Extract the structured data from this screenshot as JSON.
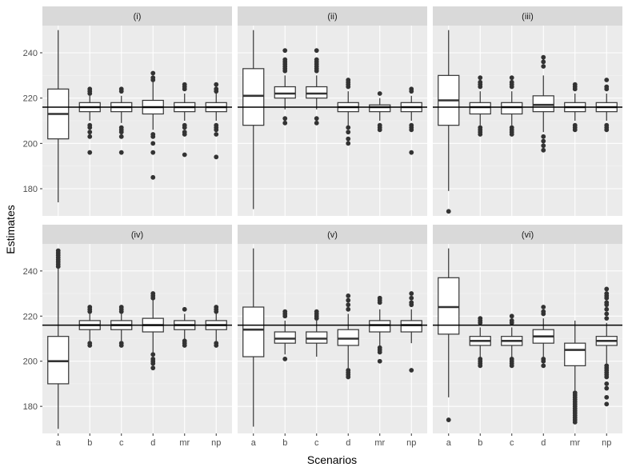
{
  "chart_data": {
    "type": "boxplot",
    "xlabel": "Scenarios",
    "ylabel": "Estimates",
    "categories": [
      "a",
      "b",
      "c",
      "d",
      "mr",
      "np"
    ],
    "ylim": [
      168,
      252
    ],
    "yticks": [
      180,
      200,
      220,
      240
    ],
    "reference_line": 216,
    "panels": [
      {
        "label": "(i)",
        "boxes": [
          {
            "min": 174,
            "q1": 202,
            "median": 213,
            "q3": 224,
            "max": 250,
            "outliers": []
          },
          {
            "min": 210,
            "q1": 214,
            "median": 216,
            "q3": 218,
            "max": 221,
            "outliers": [
              224,
              223,
              222,
              208,
              207,
              205,
              203,
              196
            ]
          },
          {
            "min": 209,
            "q1": 214,
            "median": 216,
            "q3": 218,
            "max": 221,
            "outliers": [
              224,
              223,
              207,
              206,
              205,
              203,
              196
            ]
          },
          {
            "min": 206,
            "q1": 213,
            "median": 216,
            "q3": 219,
            "max": 227,
            "outliers": [
              231,
              229,
              228,
              204,
              203,
              200,
              196,
              185
            ]
          },
          {
            "min": 210,
            "q1": 214,
            "median": 216,
            "q3": 218,
            "max": 222,
            "outliers": [
              226,
              225,
              224,
              208,
              207,
              205,
              204,
              195
            ]
          },
          {
            "min": 210,
            "q1": 214,
            "median": 216,
            "q3": 218,
            "max": 222,
            "outliers": [
              226,
              224,
              223,
              208,
              207,
              206,
              204,
              194
            ]
          }
        ]
      },
      {
        "label": "(ii)",
        "boxes": [
          {
            "min": 171,
            "q1": 208,
            "median": 221,
            "q3": 233,
            "max": 250,
            "outliers": []
          },
          {
            "min": 215,
            "q1": 220,
            "median": 222,
            "q3": 225,
            "max": 230,
            "outliers": [
              241,
              237,
              236,
              235,
              234,
              233,
              232,
              211,
              209
            ]
          },
          {
            "min": 215,
            "q1": 220,
            "median": 222,
            "q3": 225,
            "max": 230,
            "outliers": [
              241,
              237,
              236,
              235,
              234,
              233,
              232,
              211,
              209
            ]
          },
          {
            "min": 207,
            "q1": 214,
            "median": 216,
            "q3": 218,
            "max": 223,
            "outliers": [
              228,
              227,
              226,
              225,
              207,
              205,
              202,
              200
            ]
          },
          {
            "min": 210,
            "q1": 214,
            "median": 216,
            "q3": 217,
            "max": 220,
            "outliers": [
              222,
              208,
              207,
              206
            ]
          },
          {
            "min": 210,
            "q1": 214,
            "median": 216,
            "q3": 218,
            "max": 221,
            "outliers": [
              224,
              223,
              208,
              207,
              206,
              196
            ]
          }
        ]
      },
      {
        "label": "(iii)",
        "boxes": [
          {
            "min": 179,
            "q1": 208,
            "median": 219,
            "q3": 230,
            "max": 250,
            "outliers": [
              170
            ]
          },
          {
            "min": 208,
            "q1": 213,
            "median": 216,
            "q3": 218,
            "max": 223,
            "outliers": [
              229,
              227,
              226,
              225,
              207,
              206,
              205,
              204
            ]
          },
          {
            "min": 208,
            "q1": 213,
            "median": 216,
            "q3": 218,
            "max": 223,
            "outliers": [
              229,
              227,
              226,
              225,
              207,
              206,
              205,
              204
            ]
          },
          {
            "min": 205,
            "q1": 214,
            "median": 217,
            "q3": 221,
            "max": 230,
            "outliers": [
              238,
              236,
              234,
              203,
              201,
              199,
              197
            ]
          },
          {
            "min": 210,
            "q1": 214,
            "median": 216,
            "q3": 218,
            "max": 222,
            "outliers": [
              226,
              225,
              224,
              208,
              207,
              206
            ]
          },
          {
            "min": 210,
            "q1": 214,
            "median": 216,
            "q3": 218,
            "max": 222,
            "outliers": [
              228,
              225,
              224,
              208,
              207,
              206
            ]
          }
        ]
      },
      {
        "label": "(iv)",
        "boxes": [
          {
            "min": 170,
            "q1": 190,
            "median": 200,
            "q3": 211,
            "max": 241,
            "outliers": [
              249,
              248,
              247,
              246,
              245,
              244,
              243,
              242
            ]
          },
          {
            "min": 209,
            "q1": 214,
            "median": 216,
            "q3": 218,
            "max": 221,
            "outliers": [
              224,
              223,
              222,
              208,
              207
            ]
          },
          {
            "min": 209,
            "q1": 214,
            "median": 216,
            "q3": 218,
            "max": 221,
            "outliers": [
              224,
              223,
              222,
              208,
              207
            ]
          },
          {
            "min": 204,
            "q1": 213,
            "median": 216,
            "q3": 219,
            "max": 228,
            "outliers": [
              230,
              229,
              228,
              203,
              201,
              200,
              199,
              197
            ]
          },
          {
            "min": 210,
            "q1": 214,
            "median": 216,
            "q3": 218,
            "max": 221,
            "outliers": [
              223,
              209,
              208,
              207
            ]
          },
          {
            "min": 209,
            "q1": 214,
            "median": 216,
            "q3": 218,
            "max": 221,
            "outliers": [
              224,
              223,
              222,
              208,
              207
            ]
          }
        ]
      },
      {
        "label": "(v)",
        "boxes": [
          {
            "min": 171,
            "q1": 202,
            "median": 214,
            "q3": 224,
            "max": 250,
            "outliers": []
          },
          {
            "min": 203,
            "q1": 208,
            "median": 210,
            "q3": 213,
            "max": 218,
            "outliers": [
              222,
              221,
              220,
              201
            ]
          },
          {
            "min": 202,
            "q1": 208,
            "median": 210,
            "q3": 213,
            "max": 218,
            "outliers": [
              222,
              221,
              220,
              219
            ]
          },
          {
            "min": 197,
            "q1": 207,
            "median": 210,
            "q3": 214,
            "max": 221,
            "outliers": [
              229,
              227,
              225,
              223,
              196,
              195,
              194,
              193
            ]
          },
          {
            "min": 207,
            "q1": 213,
            "median": 216,
            "q3": 218,
            "max": 223,
            "outliers": [
              228,
              227,
              226,
              206,
              205,
              204,
              200
            ]
          },
          {
            "min": 208,
            "q1": 213,
            "median": 216,
            "q3": 218,
            "max": 223,
            "outliers": [
              230,
              228,
              226,
              225,
              196
            ]
          }
        ]
      },
      {
        "label": "(vi)",
        "boxes": [
          {
            "min": 184,
            "q1": 212,
            "median": 224,
            "q3": 237,
            "max": 250,
            "outliers": [
              174
            ]
          },
          {
            "min": 202,
            "q1": 207,
            "median": 209,
            "q3": 211,
            "max": 215,
            "outliers": [
              219,
              218,
              217,
              201,
              200,
              199,
              198
            ]
          },
          {
            "min": 202,
            "q1": 207,
            "median": 209,
            "q3": 211,
            "max": 215,
            "outliers": [
              220,
              218,
              217,
              201,
              200,
              199,
              198
            ]
          },
          {
            "min": 202,
            "q1": 208,
            "median": 211,
            "q3": 214,
            "max": 219,
            "outliers": [
              224,
              222,
              221,
              201,
              200,
              198
            ]
          },
          {
            "min": 187,
            "q1": 198,
            "median": 205,
            "q3": 208,
            "max": 218,
            "outliers": [
              186,
              185,
              184,
              183,
              182,
              181,
              180,
              179,
              178,
              177,
              176,
              175,
              174,
              173
            ]
          },
          {
            "min": 199,
            "q1": 207,
            "median": 209,
            "q3": 211,
            "max": 217,
            "outliers": [
              232,
              230,
              229,
              228,
              226,
              225,
              223,
              221,
              219,
              198,
              197,
              196,
              195,
              194,
              193,
              190,
              188,
              184,
              181
            ]
          }
        ]
      }
    ]
  }
}
